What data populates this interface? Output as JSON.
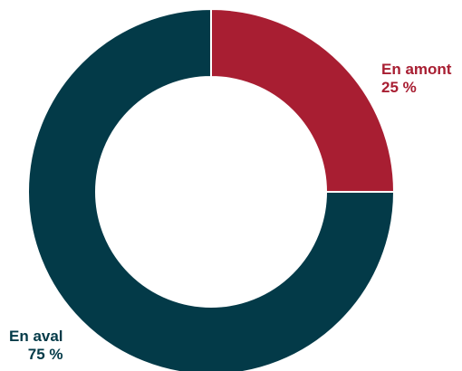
{
  "chart_data": {
    "type": "pie",
    "variant": "donut",
    "title": "",
    "slices": [
      {
        "label": "En amont",
        "value": 25,
        "value_label": "25 %",
        "color": "#a81e32"
      },
      {
        "label": "En aval",
        "value": 75,
        "value_label": "75 %",
        "color": "#033a48"
      }
    ],
    "start_angle": "12 o'clock",
    "direction": "clockwise",
    "legend": "none",
    "labels_position": "outside slices"
  }
}
